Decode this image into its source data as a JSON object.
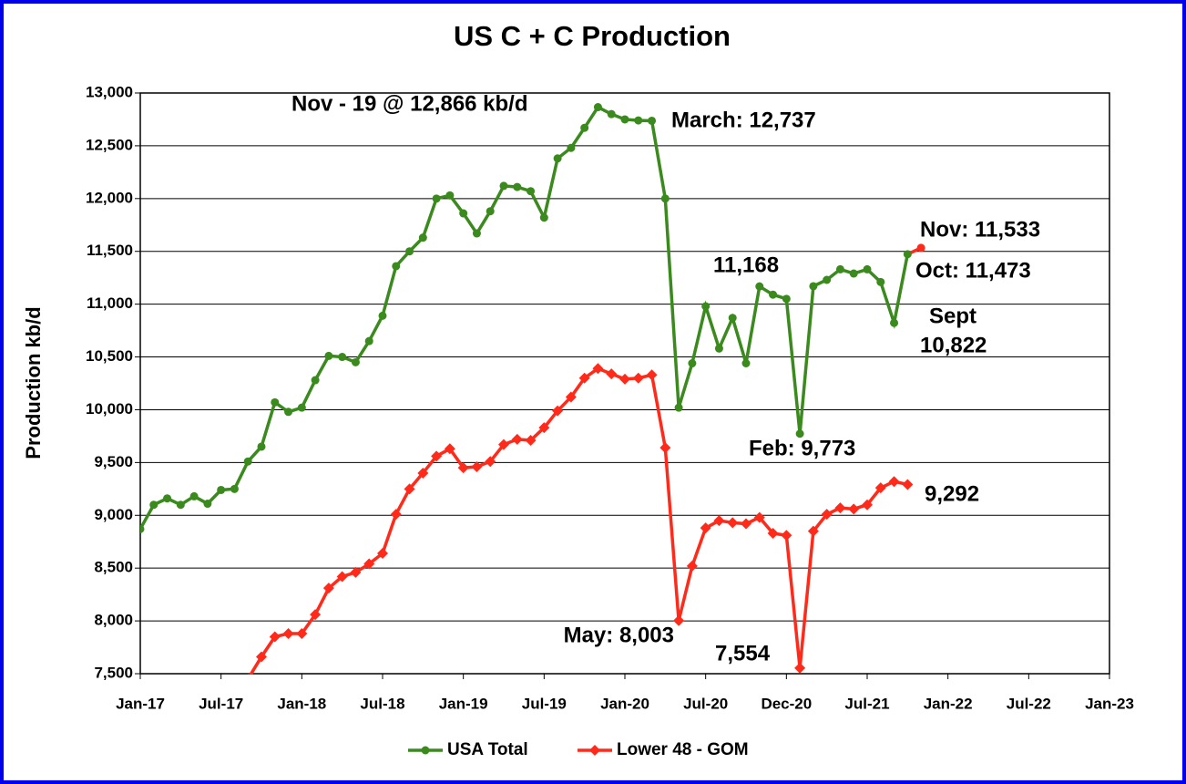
{
  "chart_data": {
    "type": "line",
    "title": "US C + C Production",
    "ylabel": "Production kb/d",
    "categories": [
      "Jan-17",
      null,
      null,
      null,
      null,
      null,
      "Jul-17",
      null,
      null,
      null,
      null,
      null,
      "Jan-18",
      null,
      null,
      null,
      null,
      null,
      "Jul-18",
      null,
      null,
      null,
      null,
      null,
      "Jan-19",
      null,
      null,
      null,
      null,
      null,
      "Jul-19",
      null,
      null,
      null,
      null,
      null,
      "Jan-20",
      null,
      null,
      null,
      null,
      null,
      "Jul-20",
      null,
      null,
      null,
      null,
      null,
      "Dec-20",
      null,
      null,
      null,
      null,
      null,
      "Jul-21",
      null,
      null,
      null,
      null,
      null,
      "Jan-22",
      null,
      null,
      null,
      null,
      null,
      "Jul-22",
      null,
      null,
      null,
      null,
      null,
      "Jan-23"
    ],
    "series": [
      {
        "name": "USA Total",
        "color": "#3a8a1e",
        "marker": "circle",
        "last_point_color": "#ff2a1a",
        "values": [
          8870,
          9100,
          9160,
          9100,
          9180,
          9110,
          9240,
          9250,
          9510,
          9650,
          10070,
          9980,
          10020,
          10280,
          10510,
          10500,
          10450,
          10650,
          10890,
          11360,
          11500,
          11630,
          12000,
          12030,
          11860,
          11670,
          11880,
          12120,
          12110,
          12070,
          11820,
          12380,
          12480,
          12670,
          12866,
          12800,
          12750,
          12740,
          12737,
          12000,
          10020,
          10440,
          10980,
          10580,
          10870,
          10440,
          11168,
          11090,
          11050,
          9773,
          11170,
          11230,
          11330,
          11290,
          11330,
          11210,
          10822,
          11473,
          11533,
          null,
          null,
          null,
          null,
          null,
          null,
          null,
          null,
          null,
          null,
          null,
          null,
          null,
          null
        ]
      },
      {
        "name": "Lower 48 - GOM",
        "color": "#ff2a1a",
        "marker": "diamond",
        "values": [
          null,
          null,
          null,
          null,
          null,
          null,
          null,
          null,
          7450,
          7660,
          7850,
          7880,
          7880,
          8060,
          8310,
          8420,
          8460,
          8540,
          8640,
          9010,
          9250,
          9400,
          9560,
          9630,
          9450,
          9460,
          9510,
          9670,
          9720,
          9710,
          9830,
          9990,
          10120,
          10300,
          10390,
          10340,
          10290,
          10300,
          10330,
          9640,
          8003,
          8520,
          8880,
          8950,
          8930,
          8920,
          8980,
          8830,
          8810,
          7554,
          8850,
          9010,
          9070,
          9060,
          9100,
          9260,
          9320,
          9292,
          null,
          null,
          null,
          null,
          null,
          null,
          null,
          null,
          null,
          null,
          null,
          null,
          null,
          null,
          null
        ]
      }
    ],
    "ylim": [
      7500,
      13000
    ],
    "yticks": [
      {
        "value": 7500,
        "label": "7,500"
      },
      {
        "value": 8000,
        "label": "8,000"
      },
      {
        "value": 8500,
        "label": "8,500"
      },
      {
        "value": 9000,
        "label": "9,000"
      },
      {
        "value": 9500,
        "label": "9,500"
      },
      {
        "value": 10000,
        "label": "10,000"
      },
      {
        "value": 10500,
        "label": "10,500"
      },
      {
        "value": 11000,
        "label": "11,000"
      },
      {
        "value": 11500,
        "label": "11,500"
      },
      {
        "value": 12000,
        "label": "12,000"
      },
      {
        "value": 12500,
        "label": "12,500"
      },
      {
        "value": 13000,
        "label": "13,000"
      }
    ],
    "grid": true,
    "legend": "bottom",
    "annotations": [
      "Nov - 19 @ 12,866 kb/d",
      "March: 12,737",
      "11,168",
      "Nov: 11,533",
      "Oct: 11,473",
      "Sept",
      "10,822",
      "Feb: 9,773",
      "9,292",
      "May: 8,003",
      "7,554"
    ]
  }
}
